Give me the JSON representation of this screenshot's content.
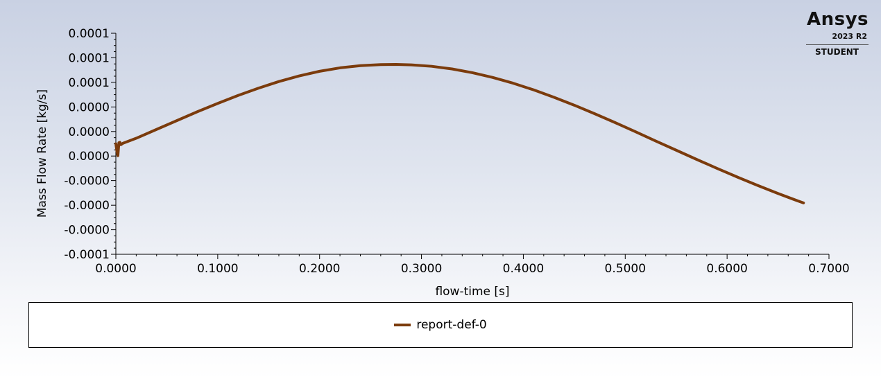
{
  "logo": {
    "name": "Ansys",
    "version": "2023 R2",
    "edition": "STUDENT"
  },
  "colors": {
    "series": "#7b3b0c"
  },
  "chart_data": {
    "type": "line",
    "xlabel": "flow-time [s]",
    "ylabel": "Mass Flow Rate [kg/s]",
    "xlim": [
      0.0,
      0.7
    ],
    "ylim": [
      -0.0001,
      0.0001
    ],
    "x_ticks": [
      0.0,
      0.1,
      0.2,
      0.3,
      0.4,
      0.5,
      0.6,
      0.7
    ],
    "x_tick_labels": [
      "0.0000",
      "0.1000",
      "0.2000",
      "0.3000",
      "0.4000",
      "0.5000",
      "0.6000",
      "0.7000"
    ],
    "y_ticks": [
      -0.0001,
      -7.78e-05,
      -5.56e-05,
      -3.33e-05,
      -1.11e-05,
      1.11e-05,
      3.33e-05,
      5.56e-05,
      7.78e-05,
      0.0001
    ],
    "y_tick_labels": [
      "-0.0001",
      "-0.0000",
      "-0.0000",
      "-0.0000",
      "0.0000",
      "0.0000",
      "0.0000",
      "0.0001",
      "0.0001",
      "0.0001"
    ],
    "grid": false,
    "legend": "bottom",
    "series": [
      {
        "name": "report-def-0",
        "x": [
          0.0,
          0.001,
          0.002,
          0.003,
          0.004,
          0.005,
          0.007,
          0.02,
          0.04,
          0.06,
          0.08,
          0.1,
          0.12,
          0.14,
          0.16,
          0.18,
          0.2,
          0.22,
          0.24,
          0.26,
          0.275,
          0.29,
          0.31,
          0.33,
          0.35,
          0.37,
          0.39,
          0.41,
          0.43,
          0.45,
          0.47,
          0.49,
          0.51,
          0.53,
          0.55,
          0.57,
          0.59,
          0.61,
          0.63,
          0.65,
          0.67,
          0.675
        ],
        "y": [
          0.0,
          -6.5e-06,
          -1.08e-05,
          1e-06,
          1.3e-06,
          -8e-07,
          5e-07,
          5e-06,
          1.3e-05,
          2.1e-05,
          2.9e-05,
          3.65e-05,
          4.37e-05,
          5.03e-05,
          5.63e-05,
          6.14e-05,
          6.56e-05,
          6.87e-05,
          7.07e-05,
          7.16e-05,
          7.18e-05,
          7.14e-05,
          7.01e-05,
          6.77e-05,
          6.43e-05,
          6e-05,
          5.48e-05,
          4.88e-05,
          4.21e-05,
          3.49e-05,
          2.72e-05,
          1.92e-05,
          1.09e-05,
          2.5e-06,
          -5.8e-06,
          -1.41e-05,
          -2.22e-05,
          -3.01e-05,
          -3.77e-05,
          -4.5e-05,
          -5.19e-05,
          -5.35e-05
        ]
      }
    ]
  }
}
